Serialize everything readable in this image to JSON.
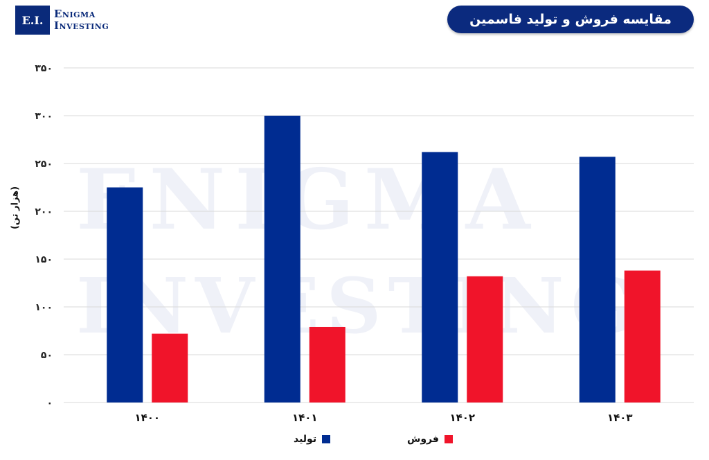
{
  "brand": {
    "mark": "E.I.",
    "line1": "Enigma",
    "line2": "Investing",
    "watermark1": "ENIGMA",
    "watermark2": "INVESTING"
  },
  "colors": {
    "production": "#002c91",
    "sales": "#f0142a",
    "title_bg": "#0b2a7e"
  },
  "chart_data": {
    "type": "bar",
    "title": "مقایسه فروش و تولید فاسمین",
    "ylabel": "(هزار تن)",
    "xlabel": "",
    "categories": [
      "۱۴۰۰",
      "۱۴۰۱",
      "۱۴۰۲",
      "۱۴۰۳"
    ],
    "series": [
      {
        "name": "تولید",
        "values": [
          225,
          300,
          262,
          257
        ]
      },
      {
        "name": "فروش",
        "values": [
          72,
          79,
          132,
          138
        ]
      }
    ],
    "ylim": [
      0,
      350
    ],
    "yticks": [
      0,
      50,
      100,
      150,
      200,
      250,
      300,
      350
    ],
    "ytick_labels": [
      "۰",
      "۵۰",
      "۱۰۰",
      "۱۵۰",
      "۲۰۰",
      "۲۵۰",
      "۳۰۰",
      "۳۵۰"
    ],
    "grid": true,
    "legend": "bottom"
  }
}
